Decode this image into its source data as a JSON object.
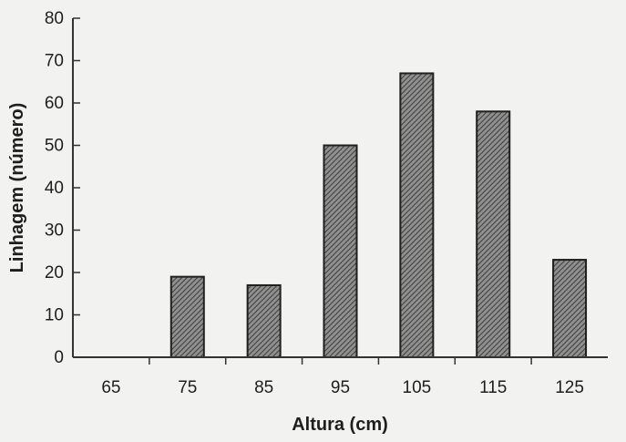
{
  "chart_data": {
    "type": "bar",
    "categories": [
      "65",
      "75",
      "85",
      "95",
      "105",
      "115",
      "125"
    ],
    "values": [
      0,
      19,
      17,
      50,
      67,
      58,
      23
    ],
    "xlabel": "Altura (cm)",
    "ylabel": "Linhagem (número)",
    "ylim": [
      0,
      80
    ],
    "yticks": [
      "0",
      "10",
      "20",
      "30",
      "40",
      "50",
      "60",
      "70",
      "80"
    ],
    "grid": false,
    "legend": "none",
    "colors": {
      "bar_fill": "#8f8f8f",
      "bar_hatch": "#3d3d3d",
      "bar_stroke": "#1f1f1f",
      "axis": "#333333",
      "background": "#f2f2f0"
    }
  }
}
